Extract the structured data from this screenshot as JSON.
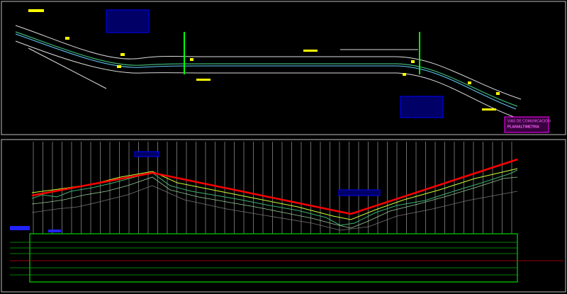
{
  "title_block": {
    "line1": "VIAS DE COMUNICACION",
    "line2": "PLANIALTIMETRIA"
  }
}
